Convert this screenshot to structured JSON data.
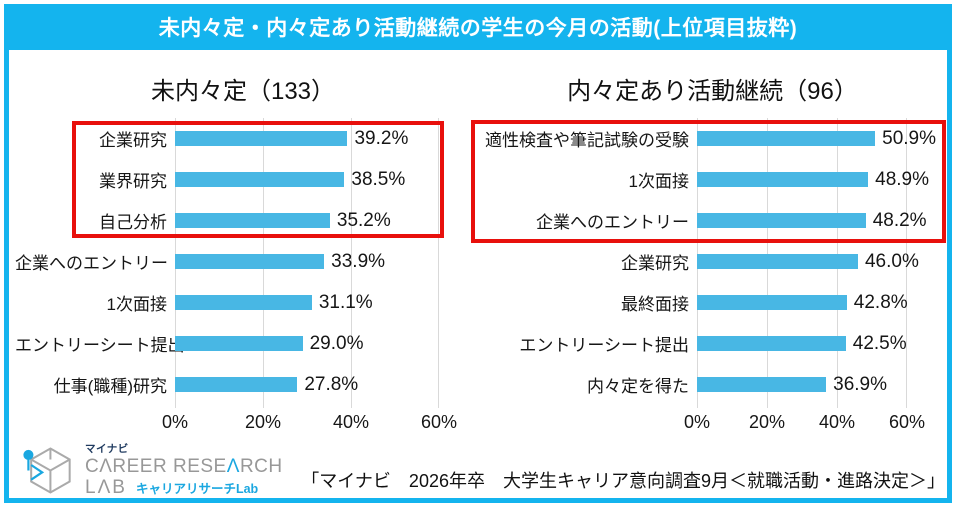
{
  "header": {
    "title": "未内々定・内々定あり活動継続の学生の今月の活動(上位項目抜粋)"
  },
  "axis": {
    "max": 60,
    "ticks": [
      "0%",
      "20%",
      "40%",
      "60%"
    ]
  },
  "chart_data": [
    {
      "type": "bar",
      "orientation": "horizontal",
      "title": "未内々定（133）",
      "categories": [
        "企業研究",
        "業界研究",
        "自己分析",
        "企業へのエントリー",
        "1次面接",
        "エントリーシート提出",
        "仕事(職種)研究"
      ],
      "values": [
        39.2,
        38.5,
        35.2,
        33.9,
        31.1,
        29.0,
        27.8
      ],
      "value_labels": [
        "39.2%",
        "38.5%",
        "35.2%",
        "33.9%",
        "31.1%",
        "29.0%",
        "27.8%"
      ],
      "xlabel": "",
      "ylabel": "",
      "xlim": [
        0,
        60
      ],
      "x_ticks": [
        "0%",
        "20%",
        "40%",
        "60%"
      ],
      "grid": "vertical",
      "legend": "none",
      "highlighted_top_items": 3
    },
    {
      "type": "bar",
      "orientation": "horizontal",
      "title": "内々定あり活動継続（96）",
      "categories": [
        "適性検査や筆記試験の受験",
        "1次面接",
        "企業へのエントリー",
        "企業研究",
        "最終面接",
        "エントリーシート提出",
        "内々定を得た"
      ],
      "values": [
        50.9,
        48.9,
        48.2,
        46.0,
        42.8,
        42.5,
        36.9
      ],
      "value_labels": [
        "50.9%",
        "48.9%",
        "48.2%",
        "46.0%",
        "42.8%",
        "42.5%",
        "36.9%"
      ],
      "xlabel": "",
      "ylabel": "",
      "xlim": [
        0,
        60
      ],
      "x_ticks": [
        "0%",
        "20%",
        "40%",
        "60%"
      ],
      "grid": "vertical",
      "legend": "none",
      "highlighted_top_items": 3
    }
  ],
  "footer": {
    "logo": {
      "brand_small": "マイナビ",
      "career_prefix": "CΛREER RESE",
      "career_accent": "Λ",
      "career_suffix": "RCH",
      "lab_text": "LΛB",
      "lab_jp": "キャリアリサーチLab"
    },
    "source": "「マイナビ　2026年卒　大学生キャリア意向調査9月＜就職活動・進路決定＞」"
  },
  "colors": {
    "brand": "#14b4ee",
    "bar": "#48b7e4",
    "highlight": "#e8100c",
    "grid": "#d9d9d9",
    "text": "#1f1f1f",
    "logo_gray": "#989898",
    "logo_navy": "#1f3a5f",
    "logo_blue": "#1aa7e0"
  }
}
